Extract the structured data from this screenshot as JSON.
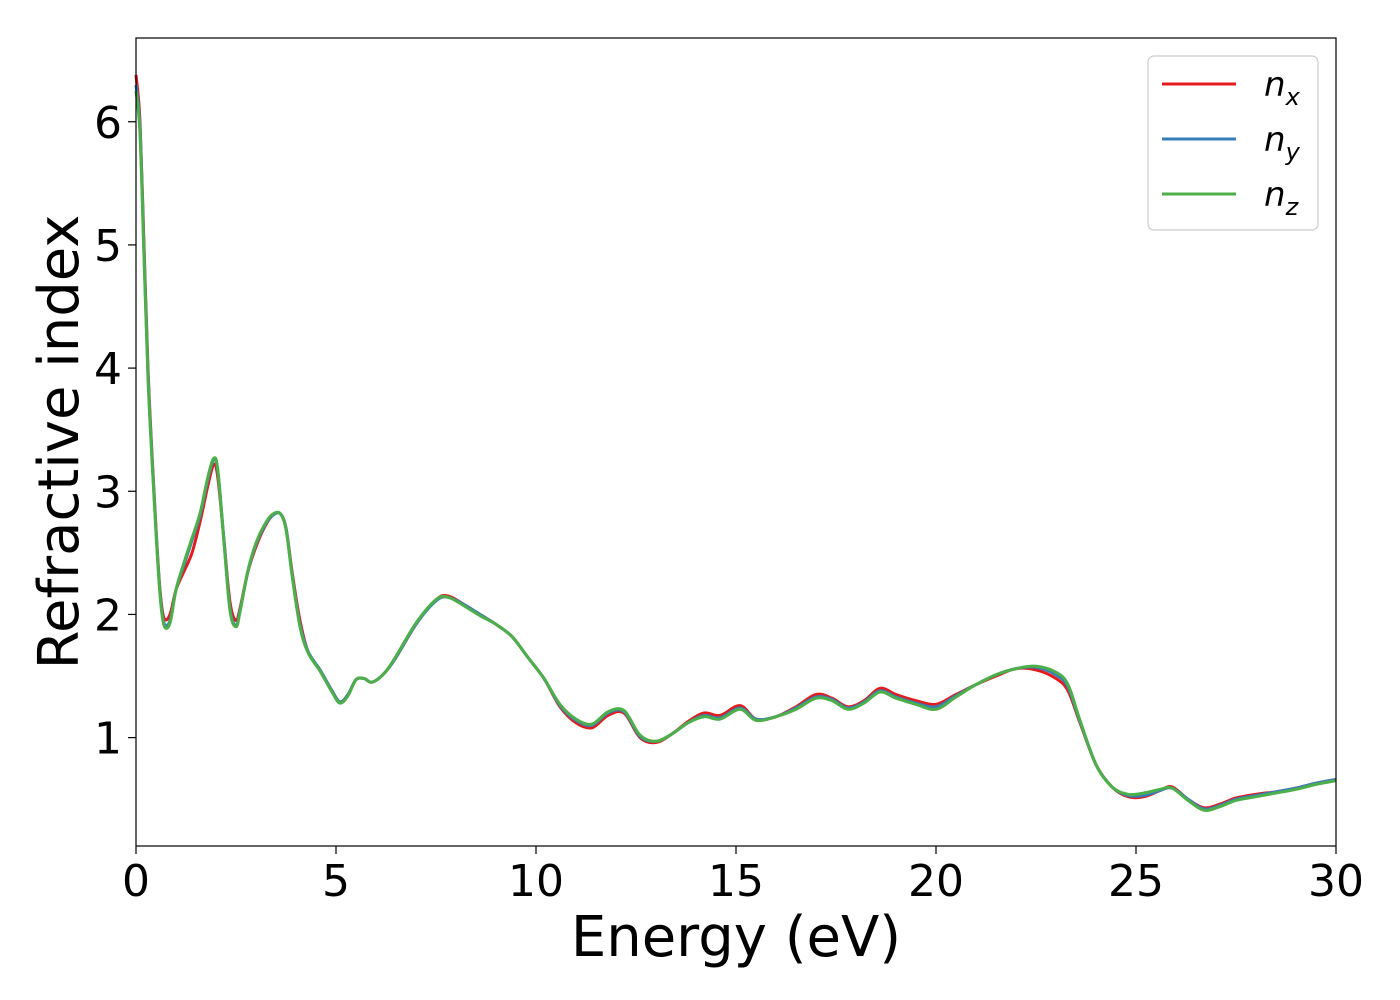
{
  "chart_data": {
    "type": "line",
    "xlabel": "Energy (eV)",
    "ylabel": "Refractive index",
    "xlim": [
      0,
      30
    ],
    "ylim": [
      0.12,
      6.68
    ],
    "xticks": [
      0,
      5,
      10,
      15,
      20,
      25,
      30
    ],
    "yticks": [
      1,
      2,
      3,
      4,
      5,
      6
    ],
    "grid": false,
    "legend_position": "top-right",
    "series": [
      {
        "name": "n",
        "subscript": "x",
        "color": "#e41a1c",
        "x": [
          0,
          0.1,
          0.2,
          0.3,
          0.4,
          0.5,
          0.6,
          0.7,
          0.85,
          1.0,
          1.2,
          1.4,
          1.6,
          1.8,
          1.95,
          2.05,
          2.2,
          2.35,
          2.5,
          2.6,
          2.8,
          3.0,
          3.2,
          3.4,
          3.6,
          3.75,
          3.9,
          4.1,
          4.3,
          4.6,
          4.9,
          5.1,
          5.3,
          5.5,
          5.7,
          5.9,
          6.2,
          6.5,
          7.0,
          7.5,
          7.8,
          8.2,
          8.6,
          9.0,
          9.4,
          9.8,
          10.2,
          10.6,
          11.0,
          11.4,
          11.8,
          12.2,
          12.6,
          13.0,
          13.4,
          13.8,
          14.2,
          14.6,
          15.1,
          15.5,
          16.0,
          16.5,
          17.0,
          17.4,
          17.8,
          18.2,
          18.6,
          19.0,
          19.5,
          20.0,
          20.5,
          21.0,
          21.5,
          22.0,
          22.5,
          23.0,
          23.3,
          23.6,
          24.0,
          24.4,
          24.8,
          25.2,
          25.6,
          25.9,
          26.3,
          26.7,
          27.1,
          27.5,
          28.0,
          28.5,
          29.0,
          29.5,
          30.0
        ],
        "y": [
          6.38,
          6.0,
          5.0,
          4.0,
          3.3,
          2.7,
          2.2,
          1.97,
          2.0,
          2.2,
          2.35,
          2.5,
          2.75,
          3.05,
          3.22,
          3.1,
          2.6,
          2.1,
          1.95,
          2.05,
          2.35,
          2.55,
          2.7,
          2.8,
          2.82,
          2.7,
          2.35,
          1.95,
          1.7,
          1.55,
          1.38,
          1.29,
          1.35,
          1.47,
          1.48,
          1.45,
          1.52,
          1.65,
          1.92,
          2.12,
          2.15,
          2.08,
          2.0,
          1.92,
          1.82,
          1.65,
          1.48,
          1.25,
          1.12,
          1.08,
          1.18,
          1.2,
          1.0,
          0.96,
          1.03,
          1.13,
          1.2,
          1.18,
          1.26,
          1.15,
          1.17,
          1.25,
          1.35,
          1.32,
          1.25,
          1.3,
          1.4,
          1.35,
          1.3,
          1.27,
          1.35,
          1.43,
          1.5,
          1.56,
          1.55,
          1.48,
          1.38,
          1.12,
          0.78,
          0.6,
          0.52,
          0.52,
          0.57,
          0.6,
          0.5,
          0.43,
          0.46,
          0.51,
          0.54,
          0.56,
          0.59,
          0.63,
          0.66
        ]
      },
      {
        "name": "n",
        "subscript": "y",
        "color": "#377eb8",
        "x": [
          0,
          0.1,
          0.2,
          0.3,
          0.4,
          0.5,
          0.6,
          0.7,
          0.85,
          1.0,
          1.2,
          1.4,
          1.6,
          1.8,
          1.95,
          2.05,
          2.2,
          2.35,
          2.5,
          2.6,
          2.8,
          3.0,
          3.2,
          3.4,
          3.6,
          3.75,
          3.9,
          4.1,
          4.3,
          4.6,
          4.9,
          5.1,
          5.3,
          5.5,
          5.7,
          5.9,
          6.2,
          6.5,
          7.0,
          7.5,
          7.8,
          8.2,
          8.6,
          9.0,
          9.4,
          9.8,
          10.2,
          10.6,
          11.0,
          11.4,
          11.8,
          12.2,
          12.6,
          13.0,
          13.4,
          13.8,
          14.2,
          14.6,
          15.1,
          15.5,
          16.0,
          16.5,
          17.0,
          17.4,
          17.8,
          18.2,
          18.6,
          19.0,
          19.5,
          20.0,
          20.5,
          21.0,
          21.5,
          22.0,
          22.5,
          23.0,
          23.3,
          23.6,
          24.0,
          24.4,
          24.8,
          25.2,
          25.6,
          25.9,
          26.3,
          26.7,
          27.1,
          27.5,
          28.0,
          28.5,
          29.0,
          29.5,
          30.0
        ],
        "y": [
          6.3,
          5.95,
          4.95,
          3.95,
          3.28,
          2.68,
          2.18,
          1.93,
          1.95,
          2.2,
          2.4,
          2.6,
          2.8,
          3.1,
          3.26,
          3.15,
          2.6,
          2.05,
          1.91,
          2.03,
          2.35,
          2.57,
          2.71,
          2.8,
          2.82,
          2.7,
          2.33,
          1.92,
          1.7,
          1.55,
          1.38,
          1.29,
          1.35,
          1.47,
          1.48,
          1.45,
          1.52,
          1.65,
          1.92,
          2.11,
          2.14,
          2.08,
          2.0,
          1.92,
          1.82,
          1.65,
          1.48,
          1.26,
          1.14,
          1.1,
          1.2,
          1.21,
          1.01,
          0.97,
          1.03,
          1.12,
          1.18,
          1.16,
          1.24,
          1.15,
          1.17,
          1.24,
          1.33,
          1.31,
          1.24,
          1.29,
          1.38,
          1.33,
          1.28,
          1.25,
          1.34,
          1.43,
          1.51,
          1.56,
          1.57,
          1.51,
          1.41,
          1.13,
          0.78,
          0.6,
          0.53,
          0.53,
          0.57,
          0.59,
          0.5,
          0.42,
          0.45,
          0.5,
          0.53,
          0.56,
          0.59,
          0.63,
          0.66
        ]
      },
      {
        "name": "n",
        "subscript": "z",
        "color": "#4daf4a",
        "x": [
          0,
          0.1,
          0.2,
          0.3,
          0.4,
          0.5,
          0.6,
          0.7,
          0.85,
          1.0,
          1.2,
          1.4,
          1.6,
          1.8,
          1.95,
          2.05,
          2.2,
          2.35,
          2.5,
          2.6,
          2.8,
          3.0,
          3.2,
          3.4,
          3.6,
          3.75,
          3.9,
          4.1,
          4.3,
          4.6,
          4.9,
          5.1,
          5.3,
          5.5,
          5.7,
          5.9,
          6.2,
          6.5,
          7.0,
          7.5,
          7.8,
          8.2,
          8.6,
          9.0,
          9.4,
          9.8,
          10.2,
          10.6,
          11.0,
          11.4,
          11.8,
          12.2,
          12.6,
          13.0,
          13.4,
          13.8,
          14.2,
          14.6,
          15.1,
          15.5,
          16.0,
          16.5,
          17.0,
          17.4,
          17.8,
          18.2,
          18.6,
          19.0,
          19.5,
          20.0,
          20.5,
          21.0,
          21.5,
          22.0,
          22.5,
          23.0,
          23.3,
          23.6,
          24.0,
          24.4,
          24.8,
          25.2,
          25.6,
          25.9,
          26.3,
          26.7,
          27.1,
          27.5,
          28.0,
          28.5,
          29.0,
          29.5,
          30.0
        ],
        "y": [
          6.25,
          5.9,
          4.9,
          3.92,
          3.25,
          2.66,
          2.16,
          1.91,
          1.93,
          2.2,
          2.42,
          2.62,
          2.82,
          3.12,
          3.27,
          3.16,
          2.58,
          2.03,
          1.9,
          2.02,
          2.36,
          2.58,
          2.72,
          2.81,
          2.82,
          2.69,
          2.32,
          1.9,
          1.69,
          1.54,
          1.37,
          1.28,
          1.34,
          1.47,
          1.48,
          1.45,
          1.52,
          1.66,
          1.93,
          2.12,
          2.14,
          2.07,
          1.99,
          1.92,
          1.82,
          1.65,
          1.48,
          1.27,
          1.15,
          1.11,
          1.21,
          1.22,
          1.02,
          0.97,
          1.03,
          1.12,
          1.17,
          1.15,
          1.23,
          1.14,
          1.17,
          1.23,
          1.32,
          1.3,
          1.23,
          1.28,
          1.37,
          1.32,
          1.27,
          1.23,
          1.33,
          1.43,
          1.51,
          1.56,
          1.58,
          1.53,
          1.43,
          1.14,
          0.78,
          0.6,
          0.54,
          0.55,
          0.58,
          0.59,
          0.49,
          0.41,
          0.44,
          0.49,
          0.52,
          0.55,
          0.58,
          0.62,
          0.65
        ]
      }
    ]
  }
}
